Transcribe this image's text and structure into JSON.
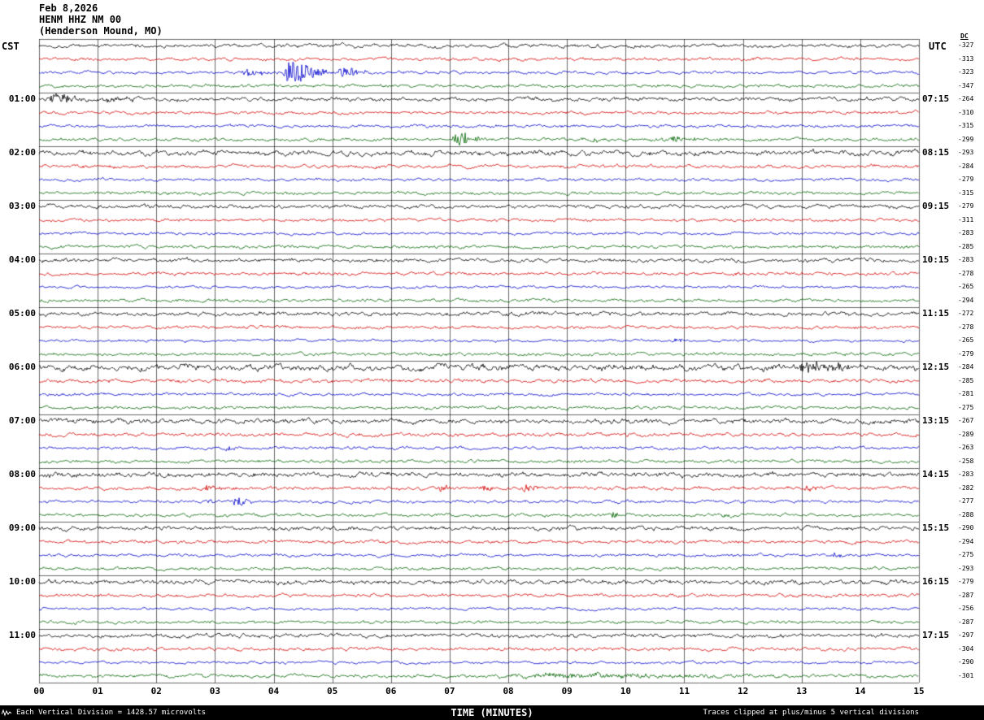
{
  "header": {
    "date": "Feb 8,2026",
    "station": "HENM HHZ NM 00",
    "location": "(Henderson Mound, MO)"
  },
  "axes": {
    "left_label": "CST",
    "right_label": "UTC",
    "dc_label": "DC",
    "x_title": "TIME (MINUTES)",
    "x_ticks": [
      "00",
      "01",
      "02",
      "03",
      "04",
      "05",
      "06",
      "07",
      "08",
      "09",
      "10",
      "11",
      "12",
      "13",
      "14",
      "15"
    ]
  },
  "footer": {
    "left": "Each Vertical Division = 1428.57 microvolts",
    "right": "Traces clipped at plus/minus 5 vertical divisions"
  },
  "chart_data": {
    "type": "line",
    "kind": "helicorder-seismogram",
    "x_range_minutes": [
      0,
      15
    ],
    "minutes_per_row": 15,
    "rows_per_hour": 4,
    "colors": {
      "black": "#000000",
      "red": "#d40000",
      "blue": "#0000cc",
      "green": "#006400"
    },
    "rows": [
      {
        "color": "black",
        "dc": -327,
        "noise": 1.4,
        "events": []
      },
      {
        "color": "red",
        "dc": -313,
        "noise": 1.2,
        "events": []
      },
      {
        "color": "blue",
        "dc": -323,
        "noise": 1.1,
        "events": [
          {
            "t": 3.4,
            "dur": 0.7,
            "amp": 5
          },
          {
            "t": 4.1,
            "dur": 1.0,
            "amp": 15
          },
          {
            "t": 5.05,
            "dur": 0.7,
            "amp": 7
          }
        ]
      },
      {
        "color": "green",
        "dc": -347,
        "noise": 1.2,
        "events": []
      },
      {
        "color": "black",
        "dc": -264,
        "cst": "01:00",
        "utc": "07:15",
        "noise": 1.5,
        "events": [
          {
            "t": 0.1,
            "dur": 0.9,
            "amp": 6
          },
          {
            "t": 1.0,
            "dur": 0.9,
            "amp": 3
          }
        ]
      },
      {
        "color": "red",
        "dc": -310,
        "noise": 1.2,
        "events": []
      },
      {
        "color": "blue",
        "dc": -315,
        "noise": 1.1,
        "events": []
      },
      {
        "color": "green",
        "dc": -299,
        "noise": 1.2,
        "events": [
          {
            "t": 7.0,
            "dur": 0.7,
            "amp": 9
          },
          {
            "t": 9.4,
            "dur": 0.3,
            "amp": 3.5
          },
          {
            "t": 10.6,
            "dur": 1.0,
            "amp": 3
          }
        ]
      },
      {
        "color": "black",
        "dc": -293,
        "cst": "02:00",
        "utc": "08:15",
        "noise": 2.0,
        "events": []
      },
      {
        "color": "red",
        "dc": -284,
        "noise": 1.3,
        "events": []
      },
      {
        "color": "blue",
        "dc": -279,
        "noise": 1.1,
        "events": []
      },
      {
        "color": "green",
        "dc": -315,
        "noise": 1.2,
        "events": []
      },
      {
        "color": "black",
        "dc": -279,
        "cst": "03:00",
        "utc": "09:15",
        "noise": 1.4,
        "events": []
      },
      {
        "color": "red",
        "dc": -311,
        "noise": 1.2,
        "events": []
      },
      {
        "color": "blue",
        "dc": -283,
        "noise": 1.0,
        "events": []
      },
      {
        "color": "green",
        "dc": -285,
        "noise": 1.2,
        "events": []
      },
      {
        "color": "black",
        "dc": -283,
        "cst": "04:00",
        "utc": "10:15",
        "noise": 1.4,
        "events": []
      },
      {
        "color": "red",
        "dc": -278,
        "noise": 1.2,
        "events": [
          {
            "t": 11.85,
            "dur": 0.2,
            "amp": 3
          }
        ]
      },
      {
        "color": "blue",
        "dc": -265,
        "noise": 1.0,
        "events": []
      },
      {
        "color": "green",
        "dc": -294,
        "noise": 1.2,
        "events": []
      },
      {
        "color": "black",
        "dc": -272,
        "cst": "05:00",
        "utc": "11:15",
        "noise": 1.5,
        "events": []
      },
      {
        "color": "red",
        "dc": -278,
        "noise": 1.2,
        "events": []
      },
      {
        "color": "blue",
        "dc": -265,
        "noise": 1.0,
        "events": [
          {
            "t": 10.8,
            "dur": 0.2,
            "amp": 5
          }
        ]
      },
      {
        "color": "green",
        "dc": -279,
        "noise": 1.2,
        "events": []
      },
      {
        "color": "black",
        "dc": -284,
        "cst": "06:00",
        "utc": "12:15",
        "noise": 2.3,
        "events": [
          {
            "t": 12.8,
            "dur": 1.5,
            "amp": 6
          }
        ]
      },
      {
        "color": "red",
        "dc": -285,
        "noise": 1.4,
        "events": []
      },
      {
        "color": "blue",
        "dc": -281,
        "noise": 1.1,
        "events": []
      },
      {
        "color": "green",
        "dc": -275,
        "noise": 1.2,
        "events": []
      },
      {
        "color": "black",
        "dc": -267,
        "cst": "07:00",
        "utc": "13:15",
        "noise": 1.8,
        "events": []
      },
      {
        "color": "red",
        "dc": -289,
        "noise": 1.3,
        "events": []
      },
      {
        "color": "blue",
        "dc": -263,
        "noise": 1.1,
        "events": [
          {
            "t": 3.15,
            "dur": 0.25,
            "amp": 4
          }
        ]
      },
      {
        "color": "green",
        "dc": -258,
        "noise": 1.2,
        "events": []
      },
      {
        "color": "black",
        "dc": -283,
        "cst": "08:00",
        "utc": "14:15",
        "noise": 1.8,
        "events": []
      },
      {
        "color": "red",
        "dc": -282,
        "noise": 1.3,
        "events": [
          {
            "t": 2.8,
            "dur": 0.4,
            "amp": 6
          },
          {
            "t": 6.8,
            "dur": 0.3,
            "amp": 5
          },
          {
            "t": 7.5,
            "dur": 0.3,
            "amp": 4
          },
          {
            "t": 8.2,
            "dur": 0.4,
            "amp": 5
          },
          {
            "t": 13.0,
            "dur": 0.4,
            "amp": 4
          }
        ]
      },
      {
        "color": "blue",
        "dc": -277,
        "noise": 1.1,
        "events": [
          {
            "t": 2.85,
            "dur": 0.2,
            "amp": 4
          },
          {
            "t": 3.25,
            "dur": 0.5,
            "amp": 7
          }
        ]
      },
      {
        "color": "green",
        "dc": -288,
        "noise": 1.2,
        "events": [
          {
            "t": 9.75,
            "dur": 0.25,
            "amp": 5
          },
          {
            "t": 11.6,
            "dur": 0.6,
            "amp": 2.5
          }
        ]
      },
      {
        "color": "black",
        "dc": -290,
        "cst": "09:00",
        "utc": "15:15",
        "noise": 1.6,
        "events": []
      },
      {
        "color": "red",
        "dc": -294,
        "noise": 1.3,
        "events": []
      },
      {
        "color": "blue",
        "dc": -275,
        "noise": 1.1,
        "events": [
          {
            "t": 13.5,
            "dur": 0.3,
            "amp": 3.5
          }
        ]
      },
      {
        "color": "green",
        "dc": -293,
        "noise": 1.2,
        "events": []
      },
      {
        "color": "black",
        "dc": -279,
        "cst": "10:00",
        "utc": "16:15",
        "noise": 1.7,
        "events": []
      },
      {
        "color": "red",
        "dc": -287,
        "noise": 1.3,
        "events": []
      },
      {
        "color": "blue",
        "dc": -256,
        "noise": 1.0,
        "events": []
      },
      {
        "color": "green",
        "dc": -287,
        "noise": 1.2,
        "events": []
      },
      {
        "color": "black",
        "dc": -297,
        "cst": "11:00",
        "utc": "17:15",
        "noise": 1.5,
        "events": []
      },
      {
        "color": "red",
        "dc": -304,
        "noise": 1.3,
        "events": []
      },
      {
        "color": "blue",
        "dc": -290,
        "noise": 1.0,
        "events": []
      },
      {
        "color": "green",
        "dc": -301,
        "noise": 1.3,
        "events": [
          {
            "t": 7.4,
            "dur": 7.6,
            "amp": 2.2
          }
        ]
      }
    ]
  }
}
